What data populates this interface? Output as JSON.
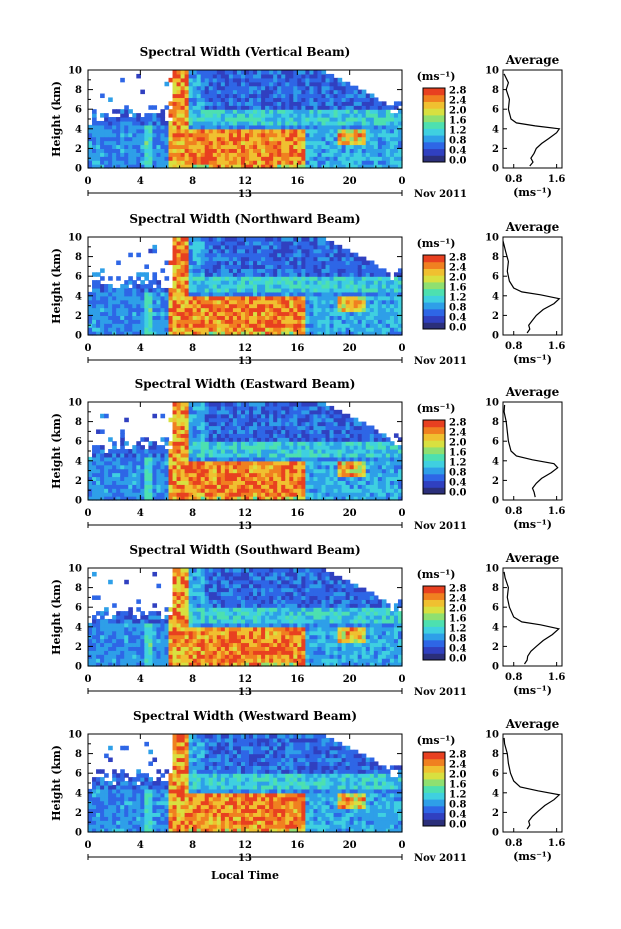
{
  "chart_data": {
    "type": "heatmap",
    "xlabel": "Local Time",
    "date_label": "Nov 2011",
    "day_label": "13",
    "x_ticks": [
      "0",
      "4",
      "8",
      "12",
      "16",
      "20",
      "0"
    ],
    "xlim": [
      0,
      24
    ],
    "ylabel": "Height (km)",
    "y_ticks": [
      "0",
      "2",
      "4",
      "6",
      "8",
      "10"
    ],
    "ylim": [
      0,
      10
    ],
    "colorbar": {
      "unit_label": "(ms⁻¹)",
      "ticks": [
        "0.0",
        "0.4",
        "0.8",
        "1.2",
        "1.6",
        "2.0",
        "2.4",
        "2.8"
      ],
      "range": [
        0.0,
        2.8
      ],
      "colors": [
        "#2b2f7a",
        "#3040c0",
        "#2e66e6",
        "#2e9fe8",
        "#3fd0e0",
        "#4de0b0",
        "#8fe070",
        "#d8e040",
        "#f0c030",
        "#f08020",
        "#e84020"
      ]
    },
    "profile_axis": {
      "title": "Average",
      "xlabel": "(ms⁻¹)",
      "x_ticks": [
        "0.8",
        "1.6"
      ],
      "xlim": [
        0.6,
        1.7
      ],
      "y_ticks": [
        "0",
        "2",
        "4",
        "6",
        "8",
        "10"
      ]
    },
    "panels": [
      {
        "title": "Spectral Width (Vertical Beam)",
        "profile": [
          [
            1.1,
            0.2
          ],
          [
            1.16,
            0.6
          ],
          [
            1.12,
            1.0
          ],
          [
            1.18,
            1.5
          ],
          [
            1.22,
            2.0
          ],
          [
            1.32,
            2.5
          ],
          [
            1.45,
            3.0
          ],
          [
            1.6,
            3.6
          ],
          [
            1.65,
            4.0
          ],
          [
            1.2,
            4.3
          ],
          [
            0.85,
            4.6
          ],
          [
            0.75,
            5.0
          ],
          [
            0.7,
            6.0
          ],
          [
            0.72,
            7.0
          ],
          [
            0.66,
            8.0
          ],
          [
            0.7,
            8.7
          ],
          [
            0.62,
            9.6
          ]
        ]
      },
      {
        "title": "Spectral Width (Northward Beam)",
        "profile": [
          [
            1.05,
            0.2
          ],
          [
            1.1,
            0.6
          ],
          [
            1.08,
            1.0
          ],
          [
            1.15,
            1.5
          ],
          [
            1.22,
            2.0
          ],
          [
            1.35,
            2.6
          ],
          [
            1.55,
            3.2
          ],
          [
            1.65,
            3.7
          ],
          [
            1.3,
            4.1
          ],
          [
            0.95,
            4.4
          ],
          [
            0.8,
            4.8
          ],
          [
            0.72,
            5.5
          ],
          [
            0.68,
            6.5
          ],
          [
            0.7,
            7.5
          ],
          [
            0.65,
            8.5
          ],
          [
            0.6,
            9.6
          ]
        ]
      },
      {
        "title": "Spectral Width (Eastward Beam)",
        "profile": [
          [
            1.2,
            0.3
          ],
          [
            1.18,
            0.8
          ],
          [
            1.15,
            1.2
          ],
          [
            1.22,
            1.7
          ],
          [
            1.32,
            2.2
          ],
          [
            1.5,
            2.8
          ],
          [
            1.62,
            3.3
          ],
          [
            1.55,
            3.7
          ],
          [
            1.15,
            4.1
          ],
          [
            0.85,
            4.5
          ],
          [
            0.75,
            5.0
          ],
          [
            0.7,
            6.0
          ],
          [
            0.68,
            7.0
          ],
          [
            0.66,
            8.0
          ],
          [
            0.62,
            9.0
          ],
          [
            0.63,
            9.7
          ]
        ]
      },
      {
        "title": "Spectral Width (Southward Beam)",
        "profile": [
          [
            1.0,
            0.2
          ],
          [
            1.05,
            0.6
          ],
          [
            1.06,
            1.0
          ],
          [
            1.12,
            1.5
          ],
          [
            1.22,
            2.0
          ],
          [
            1.35,
            2.6
          ],
          [
            1.52,
            3.2
          ],
          [
            1.64,
            3.8
          ],
          [
            1.3,
            4.2
          ],
          [
            0.95,
            4.5
          ],
          [
            0.8,
            5.0
          ],
          [
            0.72,
            6.0
          ],
          [
            0.68,
            7.0
          ],
          [
            0.7,
            8.0
          ],
          [
            0.64,
            9.0
          ],
          [
            0.62,
            9.6
          ]
        ]
      },
      {
        "title": "Spectral Width (Westward Beam)",
        "profile": [
          [
            1.05,
            0.3
          ],
          [
            1.1,
            0.7
          ],
          [
            1.08,
            1.1
          ],
          [
            1.15,
            1.6
          ],
          [
            1.25,
            2.1
          ],
          [
            1.38,
            2.7
          ],
          [
            1.55,
            3.3
          ],
          [
            1.65,
            3.8
          ],
          [
            1.25,
            4.2
          ],
          [
            0.92,
            4.6
          ],
          [
            0.8,
            5.2
          ],
          [
            0.74,
            6.0
          ],
          [
            0.7,
            7.0
          ],
          [
            0.68,
            8.0
          ],
          [
            0.63,
            9.0
          ],
          [
            0.62,
            9.6
          ]
        ]
      }
    ]
  }
}
